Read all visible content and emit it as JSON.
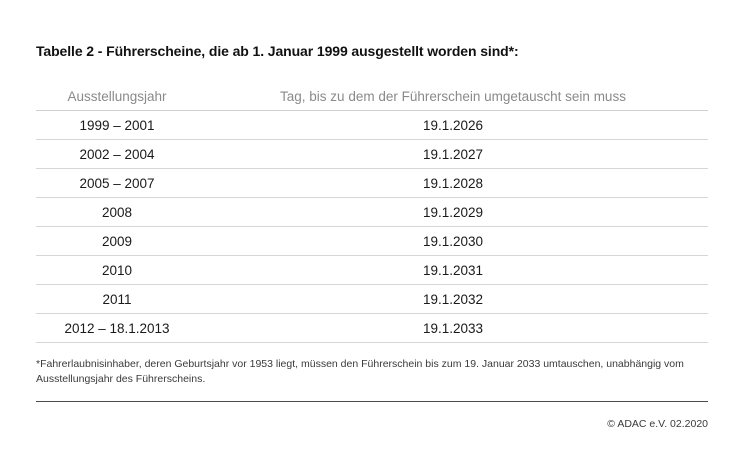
{
  "title": "Tabelle 2 - Führerscheine, die ab 1. Januar 1999 ausgestellt worden sind*:",
  "table": {
    "headers": [
      "Ausstellungsjahr",
      "Tag, bis zu dem der Führerschein umgetauscht sein muss"
    ],
    "rows": [
      [
        "1999 – 2001",
        "19.1.2026"
      ],
      [
        "2002 – 2004",
        "19.1.2027"
      ],
      [
        "2005 – 2007",
        "19.1.2028"
      ],
      [
        "2008",
        "19.1.2029"
      ],
      [
        "2009",
        "19.1.2030"
      ],
      [
        "2010",
        "19.1.2031"
      ],
      [
        "2011",
        "19.1.2032"
      ],
      [
        "2012 – 18.1.2013",
        "19.1.2033"
      ]
    ]
  },
  "footnote": "*Fahrerlaubnisinhaber, deren Geburtsjahr vor 1953 liegt, müssen den Führerschein bis zum 19. Januar 2033 umtauschen, unabhängig vom Ausstellungsjahr des Führerscheins.",
  "copyright": "© ADAC e.V. 02.2020"
}
